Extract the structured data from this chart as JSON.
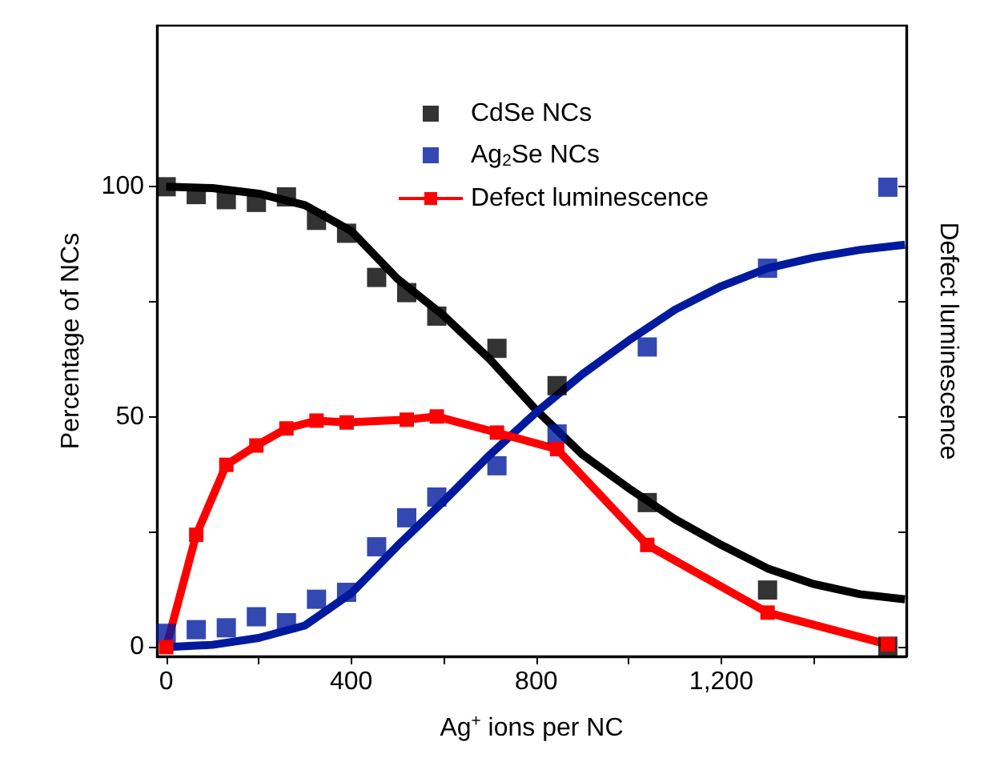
{
  "chart_data": {
    "type": "scatter",
    "xlabel": "Ag$^{+}$ ions per NC",
    "ylabel": "Percentage of NCs",
    "y2label": "Defect luminescence",
    "xlim": [
      -20,
      1600
    ],
    "ylim": [
      -2,
      135
    ],
    "xticks": [
      0,
      {
        "value": 200,
        "label": null
      },
      400,
      {
        "value": 600,
        "label": null
      },
      800,
      {
        "value": 1000,
        "label": null
      },
      {
        "value": 1200,
        "label": "1,200"
      },
      {
        "value": 1400,
        "label": null
      }
    ],
    "yticks": [
      0,
      {
        "value": 25,
        "label": null
      },
      50,
      {
        "value": 75,
        "label": null
      },
      100
    ],
    "grid": false,
    "legend": "top",
    "series": [
      {
        "name": "CdSe NCs",
        "marker": "square",
        "color": "#000000",
        "x": [
          0,
          65,
          130,
          195,
          260,
          325,
          390,
          455,
          520,
          585,
          715,
          845,
          1040,
          1300,
          1560
        ],
        "values": [
          100,
          98.3,
          97.2,
          96.6,
          97.8,
          92.7,
          89.9,
          80.3,
          77,
          71.9,
          64.9,
          56.8,
          31.4,
          12.4,
          0.2
        ]
      },
      {
        "name": "Ag$_{2}$Se NCs",
        "marker": "square",
        "color": "#001a9e",
        "x": [
          0,
          65,
          130,
          195,
          260,
          325,
          390,
          455,
          520,
          585,
          715,
          845,
          1040,
          1300,
          1560
        ],
        "values": [
          3,
          3.8,
          4.2,
          6.6,
          5.3,
          10.4,
          11.9,
          21.8,
          28.1,
          32.6,
          39.4,
          46.3,
          65.2,
          82.3,
          99.9
        ]
      },
      {
        "name": "Defect luminescence",
        "type": "line",
        "marker": "square",
        "color": "#ff0000",
        "x": [
          0,
          65,
          130,
          195,
          260,
          325,
          390,
          520,
          585,
          715,
          845,
          1040,
          1300,
          1560
        ],
        "values": [
          0,
          24.4,
          39.6,
          43.8,
          47.5,
          49.2,
          48.8,
          49.4,
          50.1,
          46.6,
          43,
          22.2,
          7.5,
          0.6
        ]
      },
      {
        "type": "line",
        "marker": "none",
        "color": "#000000",
        "x": [
          0,
          100,
          200,
          300,
          400,
          500,
          600,
          700,
          800,
          900,
          1000,
          1100,
          1200,
          1300,
          1400,
          1500,
          1597
        ],
        "values": [
          100,
          99.7,
          98.5,
          96,
          90.4,
          80,
          72,
          62.5,
          51.5,
          41.8,
          34.5,
          27.8,
          22.2,
          17.1,
          13.7,
          11.5,
          10.4
        ]
      },
      {
        "type": "line",
        "marker": "none",
        "color": "#001a9e",
        "x": [
          0,
          100,
          200,
          300,
          400,
          500,
          600,
          700,
          800,
          900,
          1000,
          1100,
          1200,
          1300,
          1400,
          1500,
          1597
        ],
        "values": [
          0,
          0.5,
          2,
          4.7,
          11.7,
          22,
          31.7,
          41.8,
          51,
          59.3,
          66.6,
          73.3,
          78.4,
          82.3,
          84.6,
          86.3,
          87.4
        ]
      }
    ]
  }
}
